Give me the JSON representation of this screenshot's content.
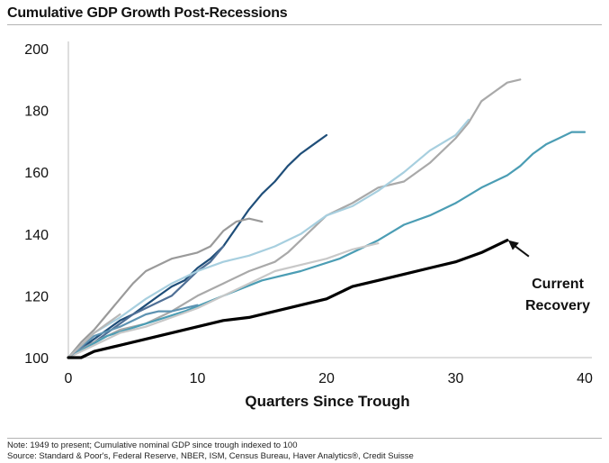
{
  "title": "Cumulative GDP Growth Post-Recessions",
  "notes": [
    "Note: 1949 to present; Cumulative nominal GDP since trough indexed to 100",
    "Source: Standard & Poor's, Federal Reserve, NBER, ISM, Census Bureau, Haver Analytics®, Credit Suisse"
  ],
  "chart_data": {
    "type": "line",
    "title": "Cumulative GDP Growth Post-Recessions",
    "xlabel": "Quarters Since Trough",
    "ylabel": "",
    "xlim": [
      0,
      40
    ],
    "ylim": [
      100,
      200
    ],
    "x_ticks": [
      0,
      10,
      20,
      30,
      40
    ],
    "y_ticks": [
      100,
      120,
      140,
      160,
      180,
      200
    ],
    "grid": false,
    "legend": "none",
    "annotation": {
      "text_lines": [
        "Current",
        "Recovery"
      ],
      "points_to": {
        "x": 34,
        "y": 138
      }
    },
    "series": [
      {
        "color": "#1f4e79",
        "width": 2.2,
        "x": [
          0,
          1,
          2,
          3,
          4,
          5,
          6,
          7,
          8,
          9,
          10,
          11,
          12,
          13,
          14,
          15,
          16,
          17,
          18,
          19,
          20
        ],
        "y": [
          100,
          103,
          106,
          109,
          112,
          114,
          117,
          120,
          123,
          125,
          129,
          132,
          136,
          142,
          148,
          153,
          157,
          162,
          166,
          169,
          172
        ]
      },
      {
        "color": "#4f6f95",
        "width": 2.2,
        "x": [
          0,
          1,
          2,
          3,
          4,
          5,
          6,
          7,
          8,
          9,
          10,
          11,
          12
        ],
        "y": [
          100,
          103,
          105,
          108,
          111,
          114,
          116,
          118,
          120,
          124,
          128,
          131,
          136
        ]
      },
      {
        "color": "#9a9a9a",
        "width": 2.2,
        "x": [
          0,
          1,
          2,
          3,
          4,
          5,
          6,
          7,
          8,
          9,
          10,
          11,
          12,
          13,
          14,
          15
        ],
        "y": [
          100,
          105,
          109,
          114,
          119,
          124,
          128,
          130,
          132,
          133,
          134,
          136,
          141,
          144,
          145,
          144
        ]
      },
      {
        "color": "#a9a9a9",
        "width": 2.2,
        "x": [
          0,
          2,
          4,
          6,
          8,
          10,
          12,
          14,
          16,
          17,
          18,
          19,
          20,
          22,
          24,
          26,
          28,
          30,
          31,
          32,
          33,
          34,
          35
        ],
        "y": [
          100,
          105,
          109,
          111,
          115,
          120,
          124,
          128,
          131,
          134,
          138,
          142,
          146,
          150,
          155,
          157,
          163,
          171,
          176,
          183,
          186,
          189,
          190
        ]
      },
      {
        "color": "#a7cfdf",
        "width": 2.2,
        "x": [
          0,
          2,
          4,
          6,
          8,
          10,
          12,
          14,
          16,
          18,
          20,
          22,
          24,
          26,
          28,
          30,
          31
        ],
        "y": [
          100,
          108,
          113,
          119,
          124,
          128,
          131,
          133,
          136,
          140,
          146,
          149,
          154,
          160,
          167,
          172,
          177
        ]
      },
      {
        "color": "#4b9db4",
        "width": 2.2,
        "x": [
          0,
          3,
          6,
          9,
          12,
          15,
          18,
          21,
          24,
          26,
          28,
          30,
          32,
          34,
          35,
          36,
          37,
          38,
          39,
          40
        ],
        "y": [
          100,
          107,
          111,
          115,
          120,
          125,
          128,
          132,
          138,
          143,
          146,
          150,
          155,
          159,
          162,
          166,
          169,
          171,
          173,
          173
        ]
      },
      {
        "color": "#c8c8c8",
        "width": 2.2,
        "x": [
          0,
          2,
          4,
          6,
          8,
          10,
          12,
          14,
          16,
          18,
          20,
          22,
          24
        ],
        "y": [
          100,
          104,
          108,
          110,
          113,
          116,
          120,
          124,
          128,
          130,
          132,
          135,
          137
        ]
      },
      {
        "color": "#5e93b2",
        "width": 2.2,
        "x": [
          0,
          2,
          4,
          6,
          7,
          8,
          10
        ],
        "y": [
          100,
          107,
          110,
          114,
          115,
          115,
          117
        ]
      },
      {
        "color": "#b8b8b8",
        "width": 2.2,
        "x": [
          0,
          1,
          2,
          3,
          4
        ],
        "y": [
          100,
          104,
          108,
          111,
          114
        ]
      },
      {
        "name": "Current Recovery",
        "color": "#000000",
        "width": 3.2,
        "x": [
          0,
          1,
          2,
          4,
          6,
          8,
          10,
          12,
          14,
          16,
          18,
          20,
          22,
          24,
          26,
          28,
          30,
          32,
          34
        ],
        "y": [
          100,
          100,
          102,
          104,
          106,
          108,
          110,
          112,
          113,
          115,
          117,
          119,
          123,
          125,
          127,
          129,
          131,
          134,
          138
        ]
      }
    ]
  }
}
